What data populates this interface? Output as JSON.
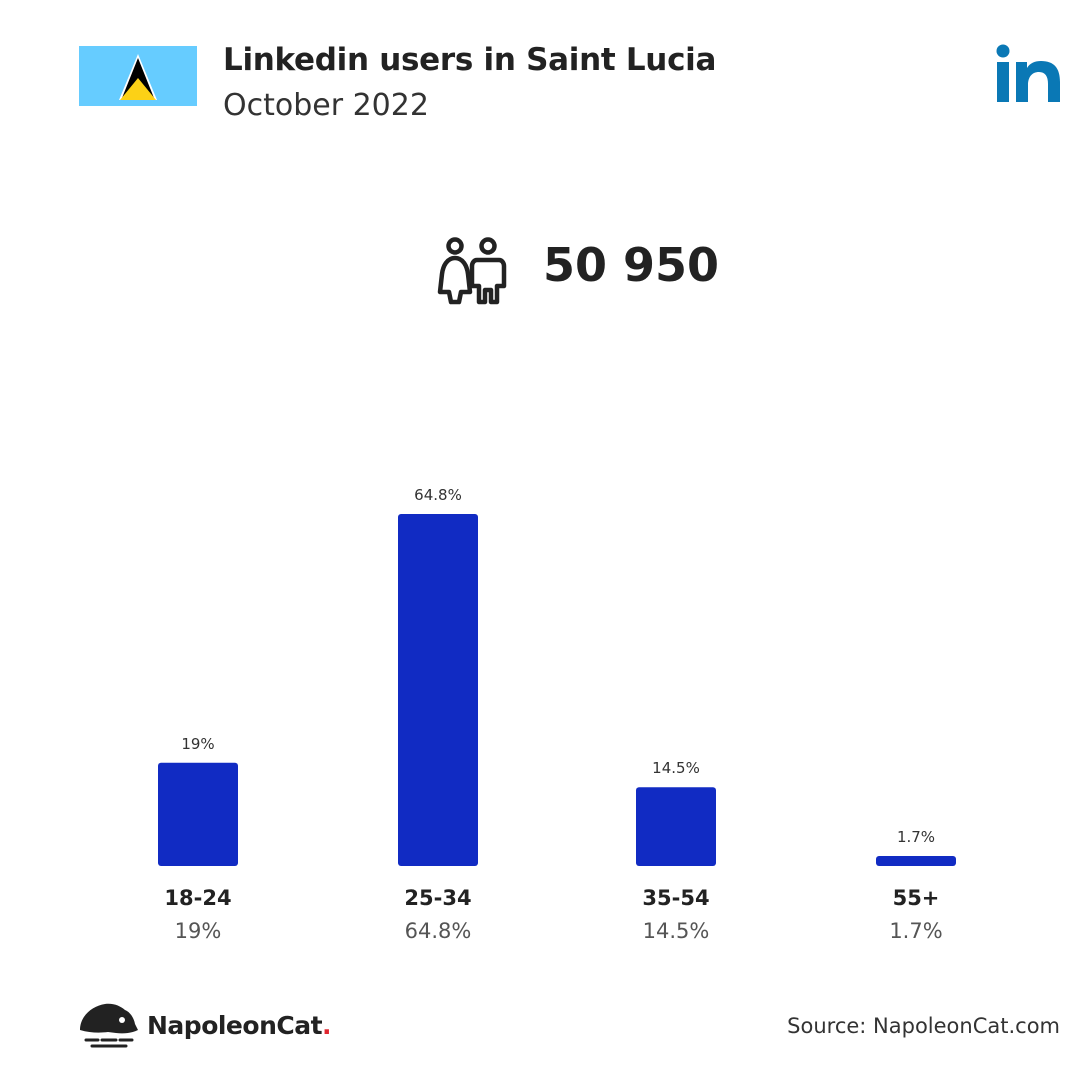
{
  "header": {
    "title": "Linkedin users in Saint Lucia",
    "subtitle": "October 2022",
    "flag_icon": "saint-lucia-flag-icon",
    "brand_icon": "linkedin-logo-icon"
  },
  "summary": {
    "icon": "people-icon",
    "total_users": "50 950"
  },
  "chart_data": {
    "type": "bar",
    "categories": [
      "18-24",
      "25-34",
      "35-54",
      "55+"
    ],
    "values": [
      19,
      64.8,
      14.5,
      1.7
    ],
    "value_labels": [
      "19%",
      "64.8%",
      "14.5%",
      "1.7%"
    ],
    "unit": "%",
    "ylim": [
      0,
      64.8
    ],
    "grid": false,
    "bar_color": "#112bc3"
  },
  "footer": {
    "brand_name": "NapoleonCat",
    "brand_dot": ".",
    "brand_icon": "napoleoncat-logo-icon",
    "source": "Source: NapoleonCat.com"
  },
  "colors": {
    "bar": "#112bc3",
    "linkedin_blue": "#0a78b5",
    "flag_sky": "#66ccff",
    "flag_gold": "#fcd116",
    "accent_red": "#e0262f"
  }
}
